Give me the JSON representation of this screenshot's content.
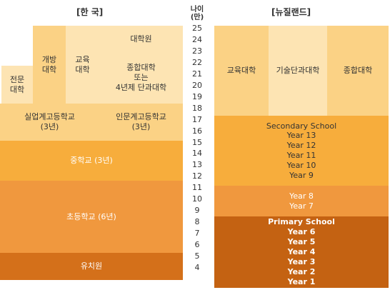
{
  "headers": {
    "korea": "[한 국]",
    "nz": "[뉴질랜드]",
    "age_line1": "나이",
    "age_line2": "(만)"
  },
  "ages": [
    "25",
    "24",
    "23",
    "22",
    "21",
    "20",
    "19",
    "18",
    "17",
    "16",
    "15",
    "14",
    "13",
    "12",
    "11",
    "10",
    "9",
    "8",
    "7",
    "6",
    "5",
    "4"
  ],
  "korea": {
    "vocational_college": [
      "전문",
      "대학"
    ],
    "open_university": [
      "개방",
      "대학"
    ],
    "education_university": [
      "교육",
      "대학"
    ],
    "graduate_school": "대학원",
    "university": [
      "종합대학",
      "또는",
      "4년제 단과대학"
    ],
    "vocational_high": [
      "실업계고등학교",
      "(3년)"
    ],
    "academic_high": [
      "인문계고등학교",
      "(3년)"
    ],
    "middle_school": "중학교 (3년)",
    "elementary_school": "초등학교 (6년)",
    "kindergarten": "유치원"
  },
  "nz": {
    "college_of_education": "교육대학",
    "polytechnic": "기술단과대학",
    "university": "종합대학",
    "secondary": [
      "Secondary School",
      "Year 13",
      "Year 12",
      "Year 11",
      "Year 10",
      "Year 9"
    ],
    "intermediate": [
      "Year 8",
      "Year 7"
    ],
    "primary": [
      "Primary School",
      "Year 6",
      "Year 5",
      "Year 4",
      "Year 3",
      "Year 2",
      "Year 1"
    ]
  },
  "colors": {
    "pale": "#fde4b3",
    "light": "#fbd285",
    "medium": "#f7ad3c",
    "dark_orange": "#f0983e",
    "deep": "#d4701a",
    "brown": "#c46212"
  }
}
